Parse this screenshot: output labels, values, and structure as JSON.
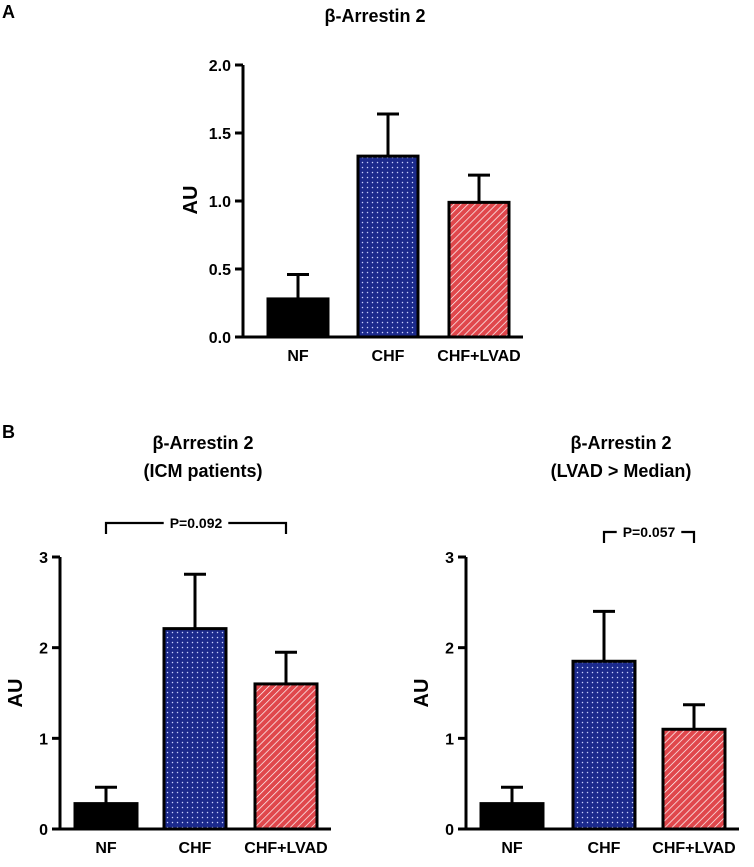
{
  "panel_labels": [
    "A",
    "B"
  ],
  "colors": {
    "NF": "#000000",
    "CHF": "#1b2a8c",
    "CHF+LVAD": "#e0474c",
    "CHF_pattern": "dots",
    "CHF+LVAD_pattern": "diagonal-hatch"
  },
  "chart_data": [
    {
      "type": "bar",
      "panel": "A",
      "title": "β-Arrestin 2",
      "categories": [
        "NF",
        "CHF",
        "CHF+LVAD"
      ],
      "values": [
        0.28,
        1.33,
        0.99
      ],
      "error_upper": [
        0.18,
        0.31,
        0.2
      ],
      "ylabel": "AU",
      "ylim": [
        0,
        2.0
      ],
      "yticks": [
        "0.0",
        "0.5",
        "1.0",
        "1.5",
        "2.0"
      ],
      "grid": false
    },
    {
      "type": "bar",
      "panel": "B-left",
      "title": "β-Arrestin 2",
      "subtitle": "(ICM patients)",
      "categories": [
        "NF",
        "CHF",
        "CHF+LVAD"
      ],
      "values": [
        0.28,
        2.21,
        1.6
      ],
      "error_upper": [
        0.18,
        0.6,
        0.35
      ],
      "ylabel": "AU",
      "ylim": [
        0,
        3
      ],
      "yticks": [
        "0",
        "1",
        "2",
        "3"
      ],
      "grid": false,
      "annotation": {
        "text": "P=0.092",
        "from": "NF",
        "to": "CHF+LVAD"
      }
    },
    {
      "type": "bar",
      "panel": "B-right",
      "title": "β-Arrestin 2",
      "subtitle": "(LVAD > Median)",
      "categories": [
        "NF",
        "CHF",
        "CHF+LVAD"
      ],
      "values": [
        0.28,
        1.85,
        1.1
      ],
      "error_upper": [
        0.18,
        0.55,
        0.27
      ],
      "ylabel": "AU",
      "ylim": [
        0,
        3
      ],
      "yticks": [
        "0",
        "1",
        "2",
        "3"
      ],
      "grid": false,
      "annotation": {
        "text": "P=0.057",
        "from": "CHF",
        "to": "CHF+LVAD"
      }
    }
  ]
}
